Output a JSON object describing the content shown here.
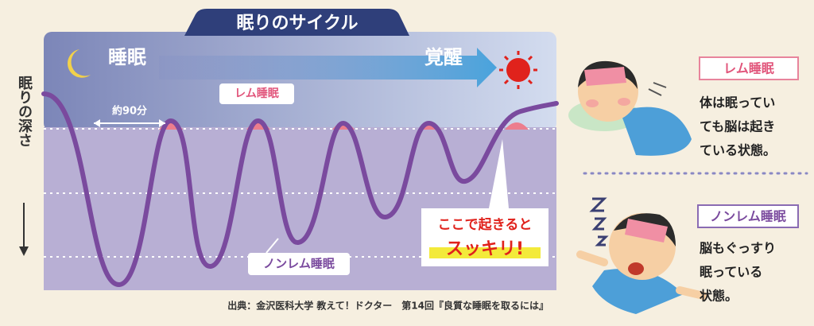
{
  "diagram": {
    "title": "眠りのサイクル",
    "start_label": "睡眠",
    "end_label": "覚醒",
    "depth_axis": "眠りの深さ",
    "cycle_label": "約90分",
    "rem_label": "レム睡眠",
    "nonrem_label": "ノンレム睡眠",
    "callout": [
      "ここで起きると",
      "スッキリ!"
    ],
    "source": "出典：金沢医科大学 教えて！ドクター　第14回『良質な睡眠を取るには』"
  },
  "legend": [
    {
      "label": "レム睡眠",
      "lines": [
        "体は眠ってい",
        "ても脳は起き",
        "ている状態。"
      ]
    },
    {
      "label": "ノンレム睡眠",
      "lines": [
        "脳もぐっすり",
        "眠っている",
        "状態。"
      ]
    }
  ]
}
